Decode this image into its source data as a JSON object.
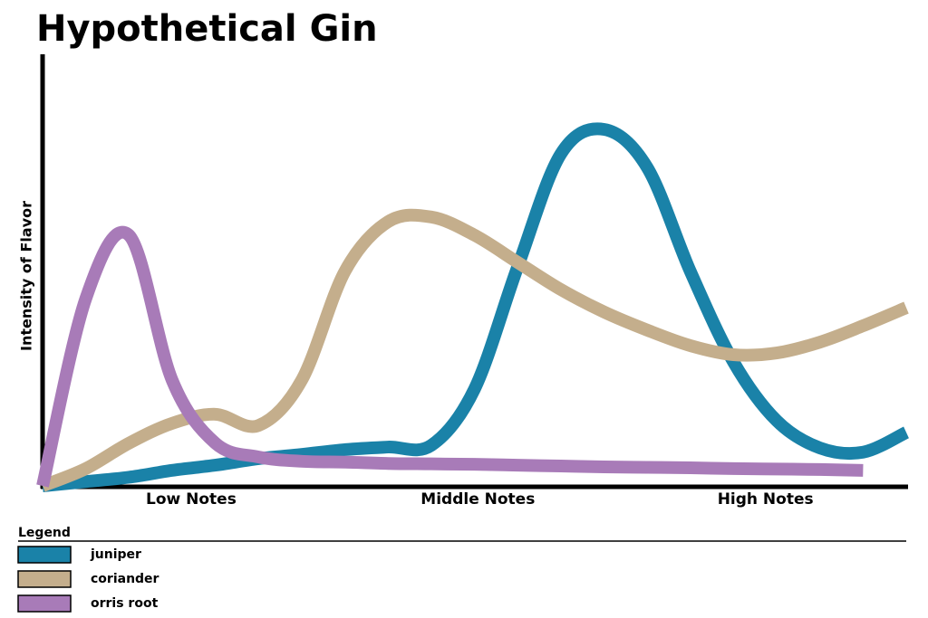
{
  "chart_data": {
    "type": "line",
    "title": "Hypothetical Gin",
    "y_label": "Intensity of Flavor",
    "x": [
      0,
      5,
      10,
      15,
      20,
      25,
      30,
      35,
      40,
      45,
      50,
      55,
      60,
      65,
      70,
      75,
      80,
      85,
      90,
      95,
      100
    ],
    "xlim": [
      0,
      100
    ],
    "ylim": [
      0,
      100
    ],
    "xticks": [
      {
        "value": 17.2,
        "label": "Low Notes"
      },
      {
        "value": 50.4,
        "label": "Middle Notes"
      },
      {
        "value": 83.7,
        "label": "High Notes"
      }
    ],
    "legend_title": "Legend",
    "series": [
      {
        "name": "juniper",
        "color": "#1a82a8",
        "values": [
          0,
          1,
          2,
          3.6,
          4.8,
          6.3,
          7.3,
          8.4,
          9,
          9.4,
          22.4,
          50.7,
          76.9,
          82.6,
          73.8,
          49.7,
          28.7,
          15.1,
          8.8,
          7.8,
          12.4
        ]
      },
      {
        "name": "coriander",
        "color": "#c4ae8c",
        "values": [
          0,
          4,
          9.9,
          14.5,
          16.6,
          14,
          24.5,
          49.7,
          61.2,
          62.3,
          58.1,
          51.8,
          45.5,
          40.3,
          36.1,
          32.5,
          30.4,
          30.8,
          33.3,
          37.1,
          41.3
        ]
      },
      {
        "name": "orris root",
        "color": "#a87bb8",
        "values": [
          0,
          43.4,
          58.1,
          24.5,
          9.9,
          6.7,
          5.7,
          5.5,
          5.2,
          5.1,
          5,
          4.8,
          4.6,
          4.4,
          4.3,
          4.2,
          4,
          3.9,
          3.8,
          3.6,
          null
        ]
      }
    ]
  }
}
